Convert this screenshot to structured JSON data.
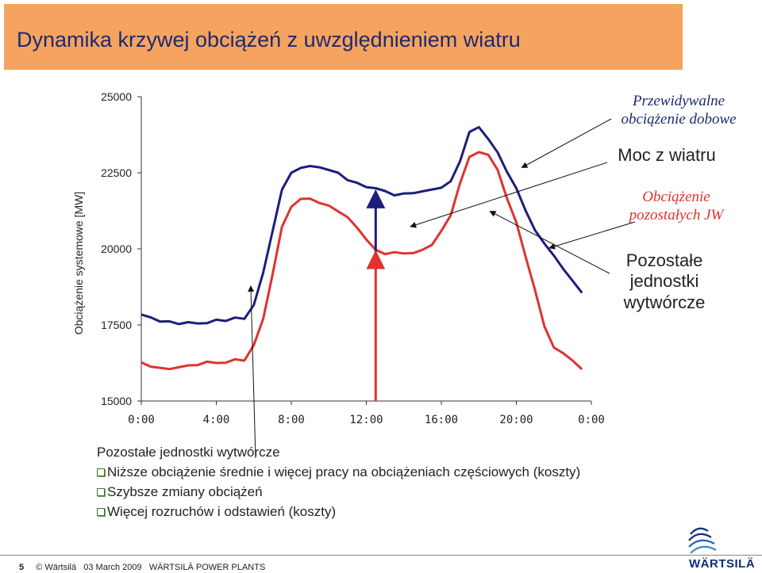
{
  "slide": {
    "title": "Dynamika krzywej obciążeń z uwzględnieniem wiatru"
  },
  "annotations": {
    "forecast_line1": "Przewidywalne",
    "forecast_line2": "obciążenie dobowe",
    "wind": "Moc z wiatru",
    "other_load_line1": "Obciążenie",
    "other_load_line2": "pozostałych JW",
    "units_line1": "Pozostałe",
    "units_line2": "jednostki",
    "units_line3": "wytwórcze"
  },
  "bullets": {
    "heading": "Pozostałe jednostki wytwórcze",
    "items": [
      "Niższe obciążenie średnie i więcej pracy na obciążeniach częściowych (koszty)",
      "Szybsze zmiany obciążeń",
      "Więcej rozruchów i odstawień (koszty)"
    ]
  },
  "footer": {
    "page": "5",
    "copyright": "© Wärtsilä",
    "date": "03 March 2009",
    "company": "WÄRTSILÄ POWER PLANTS"
  },
  "logo": {
    "wordmark": "WÄRTSILÄ"
  },
  "colors": {
    "title_bg": "#f5a35e",
    "title_text": "#1c2a72",
    "series_total": "#1c1f7a",
    "series_other": "#e0322f"
  },
  "chart_data": {
    "type": "line",
    "ylabel": "Obciążenie systemowe [MW]",
    "xlabel": "",
    "x_ticks": [
      "0:00",
      "4:00",
      "8:00",
      "12:00",
      "16:00",
      "20:00",
      "0:00"
    ],
    "y_ticks": [
      "15000",
      "17500",
      "20000",
      "22500",
      "25000"
    ],
    "ylim": [
      15000,
      25000
    ],
    "xlim_hours": [
      0,
      24
    ],
    "series": [
      {
        "name": "Przewidywalne obciążenie dobowe",
        "color": "#1c1f7a",
        "x": [
          0,
          0.5,
          1,
          1.5,
          2,
          2.5,
          3,
          3.5,
          4,
          4.5,
          5,
          5.5,
          6,
          6.5,
          7,
          7.5,
          8,
          8.5,
          9,
          9.5,
          10,
          10.5,
          11,
          11.5,
          12,
          12.5,
          13,
          13.5,
          14,
          14.5,
          15,
          15.5,
          16,
          16.5,
          17,
          17.5,
          18,
          18.5,
          19,
          19.5,
          20,
          20.5,
          21,
          21.5,
          22,
          22.5,
          23,
          23.5
        ],
        "y": [
          17800,
          17750,
          17650,
          17600,
          17550,
          17550,
          17550,
          17600,
          17650,
          17650,
          17700,
          17700,
          18200,
          19200,
          20600,
          21900,
          22500,
          22700,
          22700,
          22700,
          22550,
          22500,
          22300,
          22150,
          22050,
          21950,
          21900,
          21800,
          21800,
          21850,
          21850,
          21950,
          22050,
          22200,
          22900,
          23800,
          24000,
          23650,
          23150,
          22550,
          21950,
          21250,
          20650,
          20150,
          19800,
          19300,
          18950,
          18600
        ]
      },
      {
        "name": "Obciążenie pozostałych JW",
        "color": "#e0322f",
        "x": [
          0,
          0.5,
          1,
          1.5,
          2,
          2.5,
          3,
          3.5,
          4,
          4.5,
          5,
          5.5,
          6,
          6.5,
          7,
          7.5,
          8,
          8.5,
          9,
          9.5,
          10,
          10.5,
          11,
          11.5,
          12,
          12.5,
          13,
          13.5,
          14,
          14.5,
          15,
          15.5,
          16,
          16.5,
          17,
          17.5,
          18,
          18.5,
          19,
          19.5,
          20,
          20.5,
          21,
          21.5,
          22,
          22.5,
          23,
          23.5
        ],
        "y": [
          16250,
          16150,
          16050,
          16050,
          16150,
          16150,
          16200,
          16250,
          16250,
          16300,
          16350,
          16350,
          16800,
          17700,
          19200,
          20700,
          21400,
          21600,
          21650,
          21550,
          21400,
          21250,
          21000,
          20700,
          20350,
          19950,
          19850,
          19850,
          19850,
          19900,
          19950,
          20150,
          20550,
          21100,
          22200,
          23000,
          23200,
          23050,
          22600,
          21700,
          20850,
          19750,
          18600,
          17450,
          16800,
          16550,
          16350,
          16000
        ]
      }
    ],
    "markers": [
      {
        "type": "arrow",
        "color": "#1c1f7a",
        "x_hour": 12.5,
        "from": 19800,
        "to": 21800
      },
      {
        "type": "bar",
        "color": "#e0322f",
        "x_hour": 12.5,
        "from": 15000,
        "to": 19800
      }
    ],
    "grid": false,
    "legend": "none"
  }
}
